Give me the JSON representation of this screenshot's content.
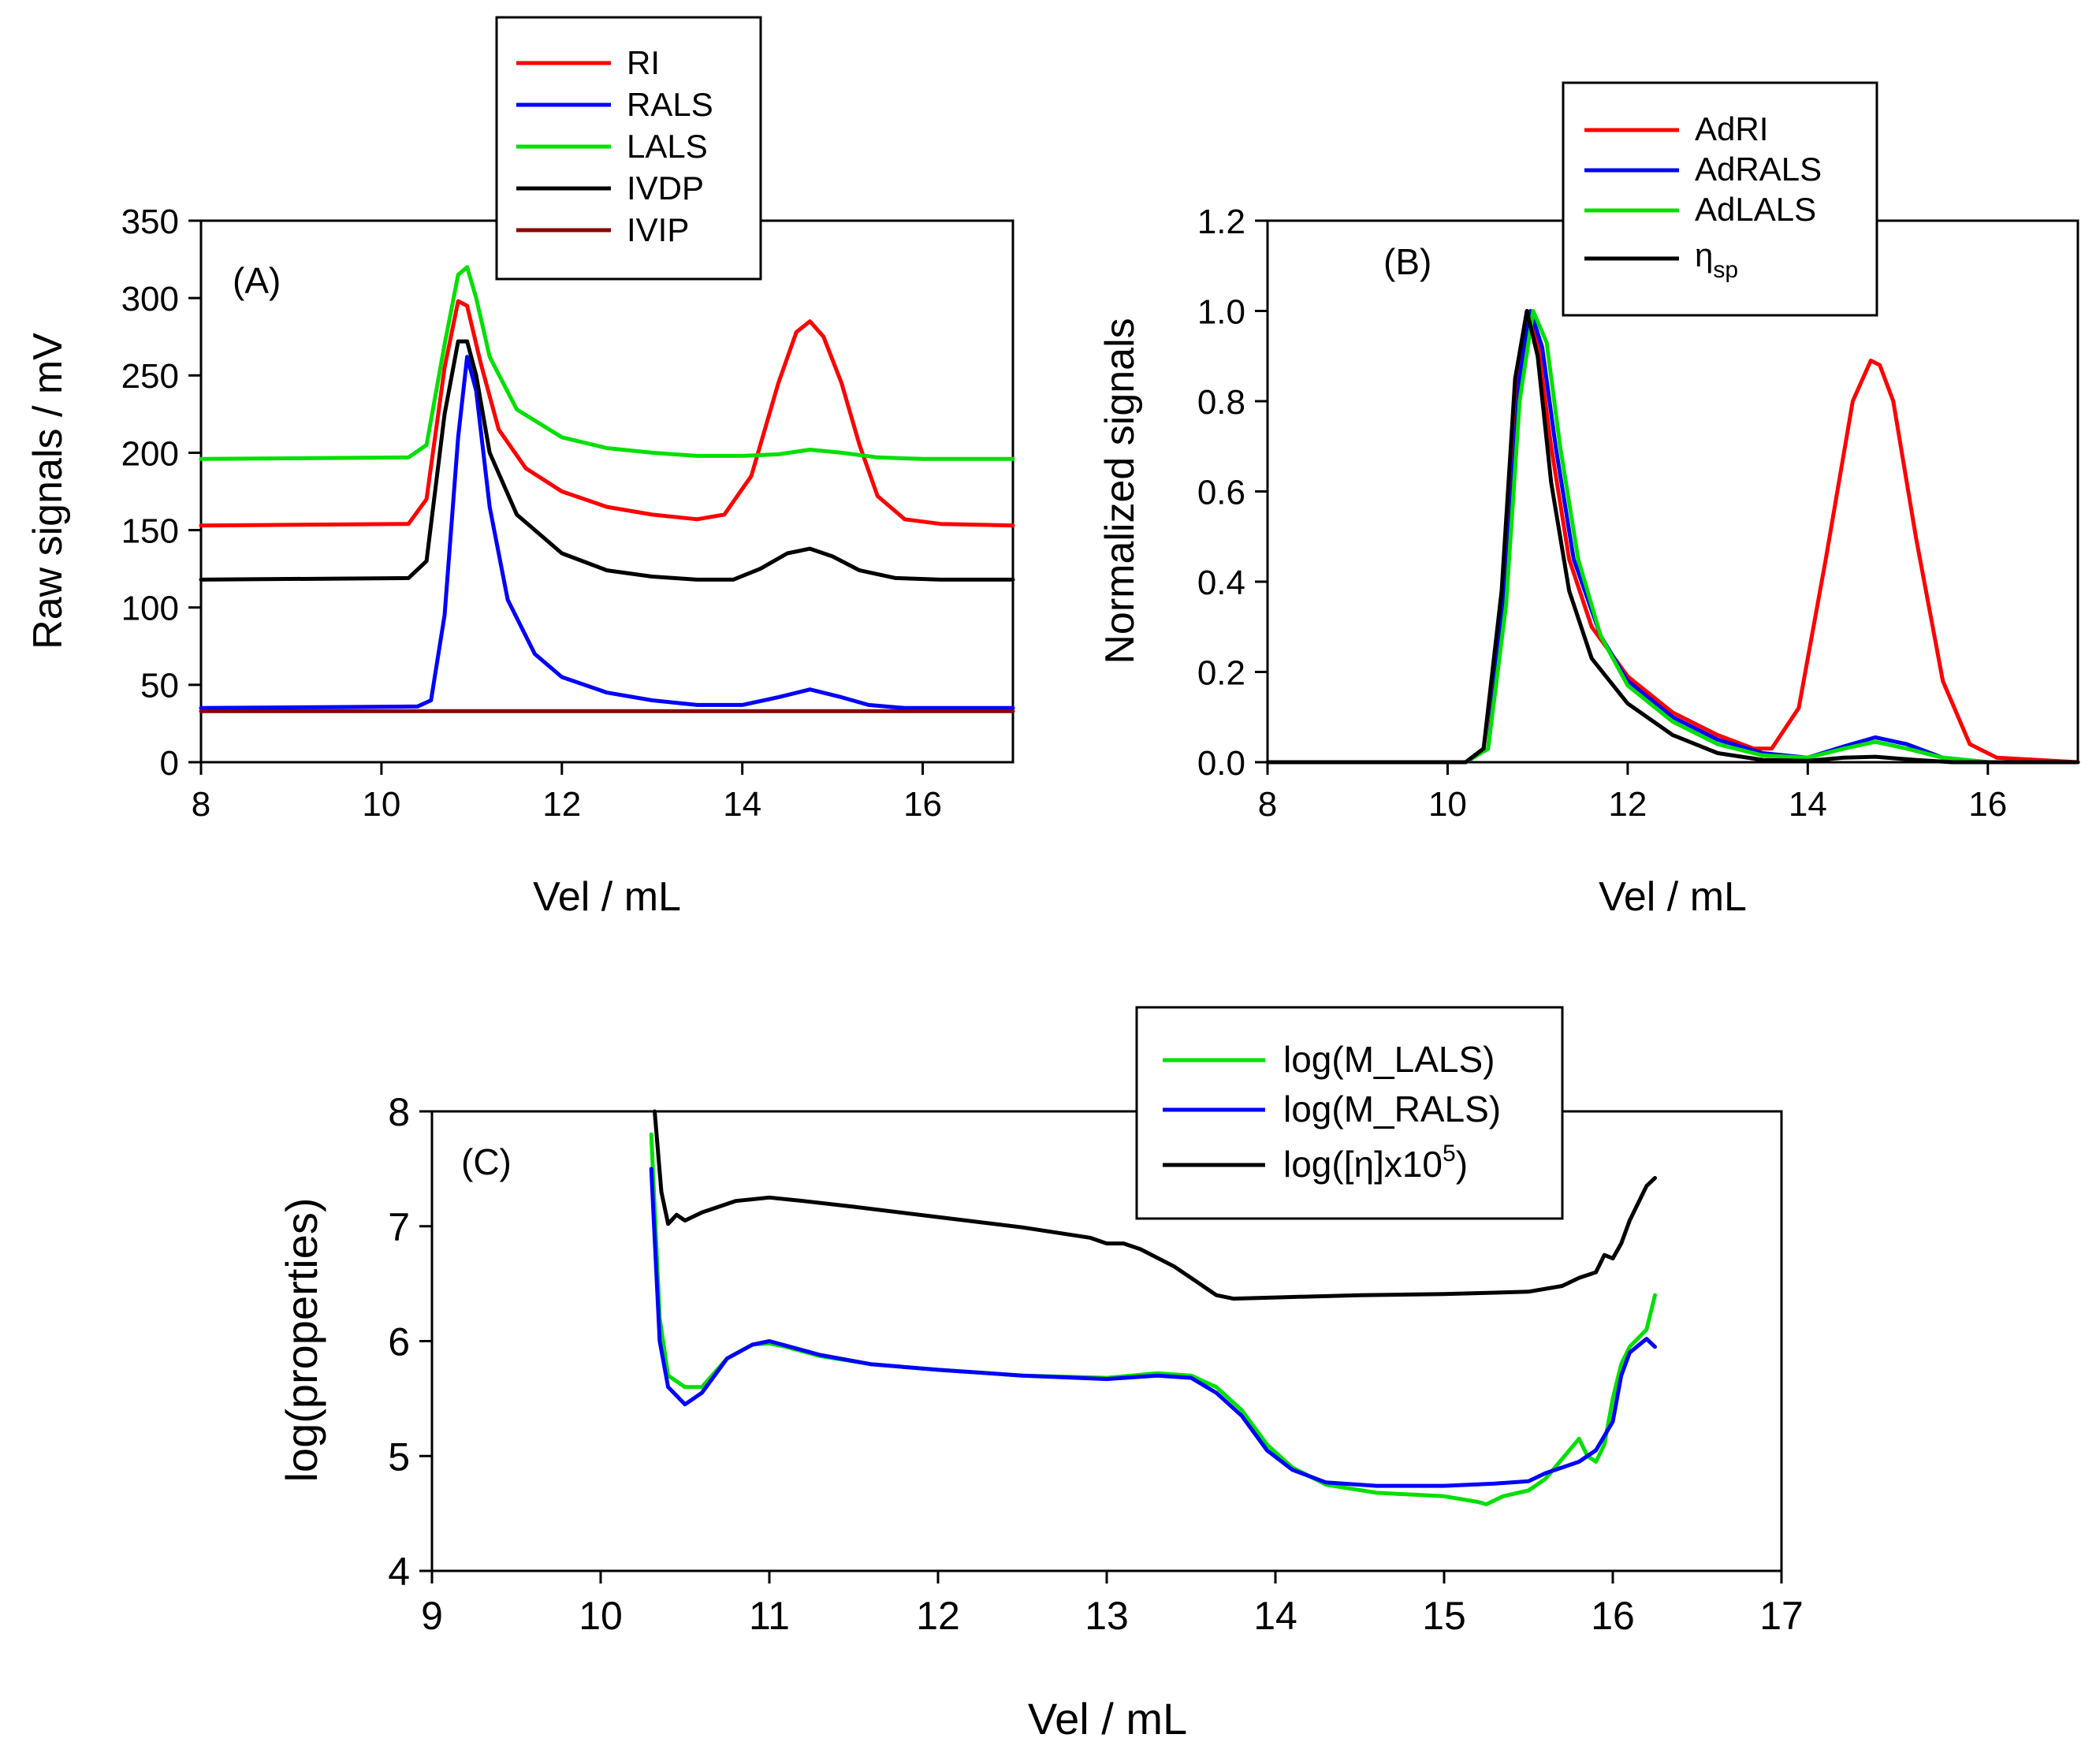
{
  "chart_data": [
    {
      "id": "A",
      "type": "line",
      "panel_label": "(A)",
      "xlabel": "Vel / mL",
      "ylabel": "Raw signals / mV",
      "xlim": [
        8,
        17
      ],
      "ylim": [
        0,
        350
      ],
      "xticks": [
        "8",
        "10",
        "12",
        "14",
        "16"
      ],
      "yticks": [
        "0",
        "50",
        "100",
        "150",
        "200",
        "250",
        "300",
        "350"
      ],
      "legend_position": "top-center",
      "series": [
        {
          "name": "RI",
          "color": "#ff0000",
          "x": [
            8,
            10.3,
            10.5,
            10.7,
            10.85,
            10.95,
            11.1,
            11.3,
            11.6,
            12.0,
            12.5,
            13.0,
            13.5,
            13.8,
            14.1,
            14.4,
            14.6,
            14.75,
            14.9,
            15.1,
            15.3,
            15.5,
            15.8,
            16.2,
            17
          ],
          "values": [
            153,
            154,
            170,
            255,
            298,
            295,
            258,
            215,
            190,
            175,
            165,
            160,
            157,
            160,
            185,
            245,
            278,
            285,
            275,
            245,
            205,
            172,
            157,
            154,
            153
          ]
        },
        {
          "name": "RALS",
          "color": "#0000ff",
          "x": [
            8,
            10.4,
            10.55,
            10.7,
            10.85,
            10.95,
            11.05,
            11.2,
            11.4,
            11.7,
            12.0,
            12.5,
            13.0,
            13.5,
            14.0,
            14.4,
            14.75,
            15.1,
            15.4,
            15.8,
            17
          ],
          "values": [
            35,
            36,
            40,
            95,
            210,
            262,
            240,
            165,
            105,
            70,
            55,
            45,
            40,
            37,
            37,
            42,
            47,
            42,
            37,
            35,
            35
          ]
        },
        {
          "name": "LALS",
          "color": "#00e000",
          "x": [
            8,
            10.3,
            10.5,
            10.7,
            10.85,
            10.95,
            11.05,
            11.2,
            11.5,
            12.0,
            12.5,
            13.0,
            13.5,
            14.0,
            14.4,
            14.75,
            15.1,
            15.5,
            16.0,
            17
          ],
          "values": [
            196,
            197,
            205,
            270,
            315,
            320,
            300,
            262,
            228,
            210,
            203,
            200,
            198,
            198,
            199,
            202,
            200,
            197,
            196,
            196
          ]
        },
        {
          "name": "IVDP",
          "color": "#000000",
          "x": [
            8,
            10.3,
            10.5,
            10.7,
            10.85,
            10.95,
            11.05,
            11.2,
            11.5,
            12.0,
            12.5,
            13.0,
            13.5,
            13.9,
            14.2,
            14.5,
            14.75,
            15.0,
            15.3,
            15.7,
            16.2,
            17
          ],
          "values": [
            118,
            119,
            130,
            225,
            272,
            272,
            250,
            200,
            160,
            135,
            124,
            120,
            118,
            118,
            125,
            135,
            138,
            133,
            124,
            119,
            118,
            118
          ]
        },
        {
          "name": "IVIP",
          "color": "#8b0000",
          "x": [
            8,
            17
          ],
          "values": [
            33,
            33
          ]
        }
      ]
    },
    {
      "id": "B",
      "type": "line",
      "panel_label": "(B)",
      "xlabel": "Vel / mL",
      "ylabel": "Normalized signals",
      "xlim": [
        8,
        17
      ],
      "ylim": [
        0,
        1.2
      ],
      "xticks": [
        "8",
        "10",
        "12",
        "14",
        "16"
      ],
      "yticks": [
        "0.0",
        "0.2",
        "0.4",
        "0.6",
        "0.8",
        "1.0",
        "1.2"
      ],
      "legend_position": "top-right",
      "series": [
        {
          "name": "AdRI",
          "color": "#ff0000",
          "x": [
            8,
            10.2,
            10.4,
            10.6,
            10.75,
            10.88,
            11.0,
            11.15,
            11.35,
            11.6,
            12.0,
            12.5,
            13.0,
            13.4,
            13.6,
            13.9,
            14.2,
            14.5,
            14.7,
            14.8,
            14.95,
            15.2,
            15.5,
            15.8,
            16.1,
            17
          ],
          "values": [
            0,
            0,
            0.03,
            0.35,
            0.8,
            1.0,
            0.93,
            0.7,
            0.45,
            0.3,
            0.19,
            0.11,
            0.06,
            0.03,
            0.03,
            0.12,
            0.45,
            0.8,
            0.89,
            0.88,
            0.8,
            0.5,
            0.18,
            0.04,
            0.01,
            0
          ]
        },
        {
          "name": "AdRALS",
          "color": "#0000ff",
          "x": [
            8,
            10.2,
            10.45,
            10.65,
            10.8,
            10.92,
            11.05,
            11.2,
            11.4,
            11.7,
            12.0,
            12.5,
            13.0,
            13.5,
            14.0,
            14.4,
            14.75,
            15.1,
            15.5,
            16.0,
            17
          ],
          "values": [
            0,
            0,
            0.03,
            0.4,
            0.85,
            1.0,
            0.92,
            0.7,
            0.45,
            0.28,
            0.18,
            0.1,
            0.05,
            0.02,
            0.01,
            0.035,
            0.055,
            0.04,
            0.01,
            0,
            0
          ]
        },
        {
          "name": "AdLALS",
          "color": "#00e000",
          "x": [
            8,
            10.2,
            10.45,
            10.65,
            10.8,
            10.95,
            11.1,
            11.25,
            11.45,
            11.7,
            12.0,
            12.5,
            13.0,
            13.5,
            14.0,
            14.4,
            14.75,
            15.1,
            15.5,
            16.0,
            17
          ],
          "values": [
            0,
            0,
            0.03,
            0.35,
            0.8,
            1.0,
            0.93,
            0.7,
            0.45,
            0.28,
            0.17,
            0.09,
            0.04,
            0.015,
            0.01,
            0.03,
            0.045,
            0.03,
            0.01,
            0,
            0
          ]
        },
        {
          "name": "η_sp",
          "color": "#000000",
          "x": [
            8,
            10.2,
            10.4,
            10.6,
            10.75,
            10.88,
            11.0,
            11.15,
            11.35,
            11.6,
            12.0,
            12.5,
            13.0,
            13.5,
            14.0,
            14.4,
            14.75,
            15.2,
            15.6,
            17
          ],
          "values": [
            0,
            0,
            0.03,
            0.38,
            0.85,
            1.0,
            0.9,
            0.62,
            0.38,
            0.23,
            0.13,
            0.06,
            0.02,
            0.005,
            0.003,
            0.01,
            0.012,
            0.005,
            0,
            0
          ]
        }
      ]
    },
    {
      "id": "C",
      "type": "line",
      "panel_label": "(C)",
      "xlabel": "Vel / mL",
      "ylabel": "log(properties)",
      "xlim": [
        9,
        17
      ],
      "ylim": [
        4,
        8
      ],
      "xticks": [
        "9",
        "10",
        "11",
        "12",
        "13",
        "14",
        "15",
        "16",
        "17"
      ],
      "yticks": [
        "4",
        "5",
        "6",
        "7",
        "8"
      ],
      "legend_position": "top-right",
      "series": [
        {
          "name": "log(M_LALS)",
          "color": "#00e000",
          "x": [
            10.3,
            10.35,
            10.4,
            10.5,
            10.6,
            10.75,
            10.9,
            11.0,
            11.1,
            11.3,
            11.6,
            12.0,
            12.5,
            13.0,
            13.3,
            13.5,
            13.65,
            13.8,
            13.95,
            14.1,
            14.3,
            14.6,
            15.0,
            15.2,
            15.25,
            15.35,
            15.5,
            15.6,
            15.8,
            15.85,
            15.9,
            15.95,
            16.0,
            16.05,
            16.1,
            16.2,
            16.25
          ],
          "values": [
            7.8,
            6.2,
            5.7,
            5.6,
            5.6,
            5.85,
            5.97,
            5.98,
            5.95,
            5.87,
            5.8,
            5.75,
            5.7,
            5.68,
            5.72,
            5.7,
            5.6,
            5.4,
            5.1,
            4.9,
            4.75,
            4.68,
            4.65,
            4.6,
            4.58,
            4.65,
            4.7,
            4.8,
            5.15,
            5.0,
            4.95,
            5.1,
            5.5,
            5.8,
            5.95,
            6.1,
            6.4
          ]
        },
        {
          "name": "log(M_RALS)",
          "color": "#0000ff",
          "x": [
            10.3,
            10.35,
            10.4,
            10.5,
            10.6,
            10.75,
            10.9,
            11.0,
            11.1,
            11.3,
            11.6,
            12.0,
            12.5,
            13.0,
            13.3,
            13.5,
            13.65,
            13.8,
            13.95,
            14.1,
            14.3,
            14.6,
            15.0,
            15.3,
            15.5,
            15.6,
            15.8,
            15.9,
            16.0,
            16.05,
            16.1,
            16.2,
            16.25
          ],
          "values": [
            7.5,
            6.0,
            5.6,
            5.45,
            5.55,
            5.85,
            5.97,
            6.0,
            5.96,
            5.88,
            5.8,
            5.75,
            5.7,
            5.67,
            5.7,
            5.68,
            5.55,
            5.35,
            5.05,
            4.88,
            4.77,
            4.74,
            4.74,
            4.76,
            4.78,
            4.85,
            4.95,
            5.05,
            5.3,
            5.7,
            5.9,
            6.02,
            5.95
          ]
        },
        {
          "name": "log([η]x10^5)",
          "color": "#000000",
          "x": [
            10.32,
            10.36,
            10.4,
            10.45,
            10.5,
            10.6,
            10.8,
            11.0,
            11.2,
            11.5,
            12.0,
            12.5,
            12.9,
            13.0,
            13.1,
            13.2,
            13.4,
            13.55,
            13.65,
            13.75,
            14.0,
            14.5,
            15.0,
            15.5,
            15.7,
            15.8,
            15.9,
            15.95,
            16.0,
            16.05,
            16.1,
            16.2,
            16.25
          ],
          "values": [
            8.0,
            7.3,
            7.02,
            7.1,
            7.05,
            7.12,
            7.22,
            7.25,
            7.22,
            7.17,
            7.08,
            6.99,
            6.9,
            6.85,
            6.85,
            6.8,
            6.65,
            6.5,
            6.4,
            6.37,
            6.38,
            6.4,
            6.41,
            6.43,
            6.48,
            6.55,
            6.6,
            6.75,
            6.72,
            6.85,
            7.05,
            7.35,
            7.42
          ]
        }
      ]
    }
  ],
  "legend_labels": {
    "A": [
      "RI",
      "RALS",
      "LALS",
      "IVDP",
      "IVIP"
    ],
    "B": [
      "AdRI",
      "AdRALS",
      "AdLALS"
    ],
    "B_eta": {
      "symbol": "η",
      "subscript": "sp"
    },
    "C": [
      "log(M_LALS)",
      "log(M_RALS)"
    ],
    "C_eta": {
      "text": "log([η]x10",
      "superscript": "5",
      "tail": ")"
    }
  }
}
